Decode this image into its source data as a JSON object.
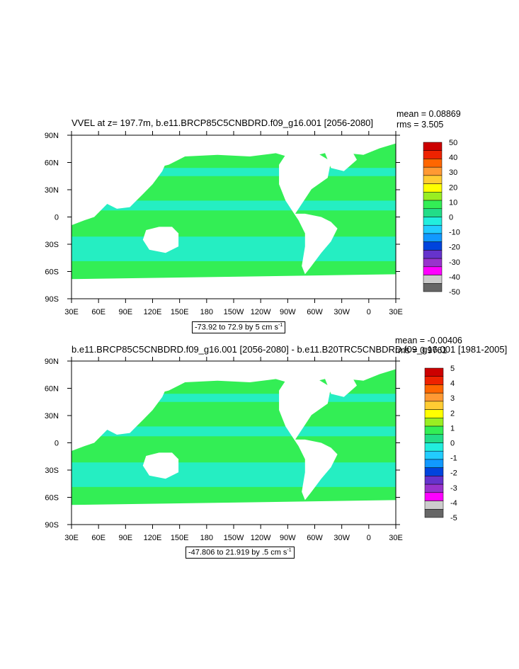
{
  "panels": [
    {
      "title": "VVEL at z= 197.7m, b.e11.BRCP85C5CNBDRD.f09_g16.001 [2056-2080]",
      "mean_label": "mean = 0.08869",
      "rms_label": "rms = 3.505",
      "info_label": "-73.92 to 72.9 by 5 cm s",
      "info_sup": "-1",
      "colorbar_labels": [
        "50",
        "40",
        "30",
        "20",
        "10",
        "0",
        "-10",
        "-20",
        "-30",
        "-40",
        "-50"
      ]
    },
    {
      "title": "b.e11.BRCP85C5CNBDRD.f09_g16.001 [2056-2080] - b.e11.B20TRC5CNBDRD.f09_g16.001 [1981-2005]",
      "mean_label": "mean = -0.00406",
      "rms_label": "rms = 0.9761",
      "info_label": "-47.806 to 21.919 by .5 cm s",
      "info_sup": "-1",
      "colorbar_labels": [
        "5",
        "4",
        "3",
        "2",
        "1",
        "0",
        "-1",
        "-2",
        "-3",
        "-4",
        "-5"
      ]
    }
  ],
  "axes": {
    "x_ticks": [
      "30E",
      "60E",
      "90E",
      "120E",
      "150E",
      "180",
      "150W",
      "120W",
      "90W",
      "60W",
      "30W",
      "0",
      "30E"
    ],
    "y_ticks": [
      "90N",
      "60N",
      "30N",
      "0",
      "30S",
      "60S",
      "90S"
    ]
  },
  "colors": {
    "ocean_base": "#33ee55",
    "ocean_low": "#22eedd",
    "land": "#ffffff",
    "colorbar": [
      "#cc0000",
      "#ee2200",
      "#ff6600",
      "#ff9933",
      "#ffcc33",
      "#ffff00",
      "#99ee22",
      "#33ee55",
      "#22dd88",
      "#22eedd",
      "#22ccff",
      "#1199ff",
      "#0044dd",
      "#6633cc",
      "#9933cc",
      "#ff00ff",
      "#cccccc",
      "#666666"
    ]
  },
  "chart_data": [
    {
      "type": "heatmap",
      "title": "VVEL at z= 197.7m, b.e11.BRCP85C5CNBDRD.f09_g16.001 [2056-2080]",
      "x_range": [
        "30E",
        "30E"
      ],
      "y_range": [
        "90S",
        "90N"
      ],
      "contour_min": -73.92,
      "contour_max": 72.9,
      "contour_interval": 5,
      "units": "cm s-1",
      "mean": 0.08869,
      "rms": 3.505,
      "colorbar_range": [
        -50,
        50
      ]
    },
    {
      "type": "heatmap",
      "title": "b.e11.BRCP85C5CNBDRD.f09_g16.001 [2056-2080] - b.e11.B20TRC5CNBDRD.f09_g16.001 [1981-2005]",
      "x_range": [
        "30E",
        "30E"
      ],
      "y_range": [
        "90S",
        "90N"
      ],
      "contour_min": -47.806,
      "contour_max": 21.919,
      "contour_interval": 0.5,
      "units": "cm s-1",
      "mean": -0.00406,
      "rms": 0.9761,
      "colorbar_range": [
        -5,
        5
      ]
    }
  ]
}
